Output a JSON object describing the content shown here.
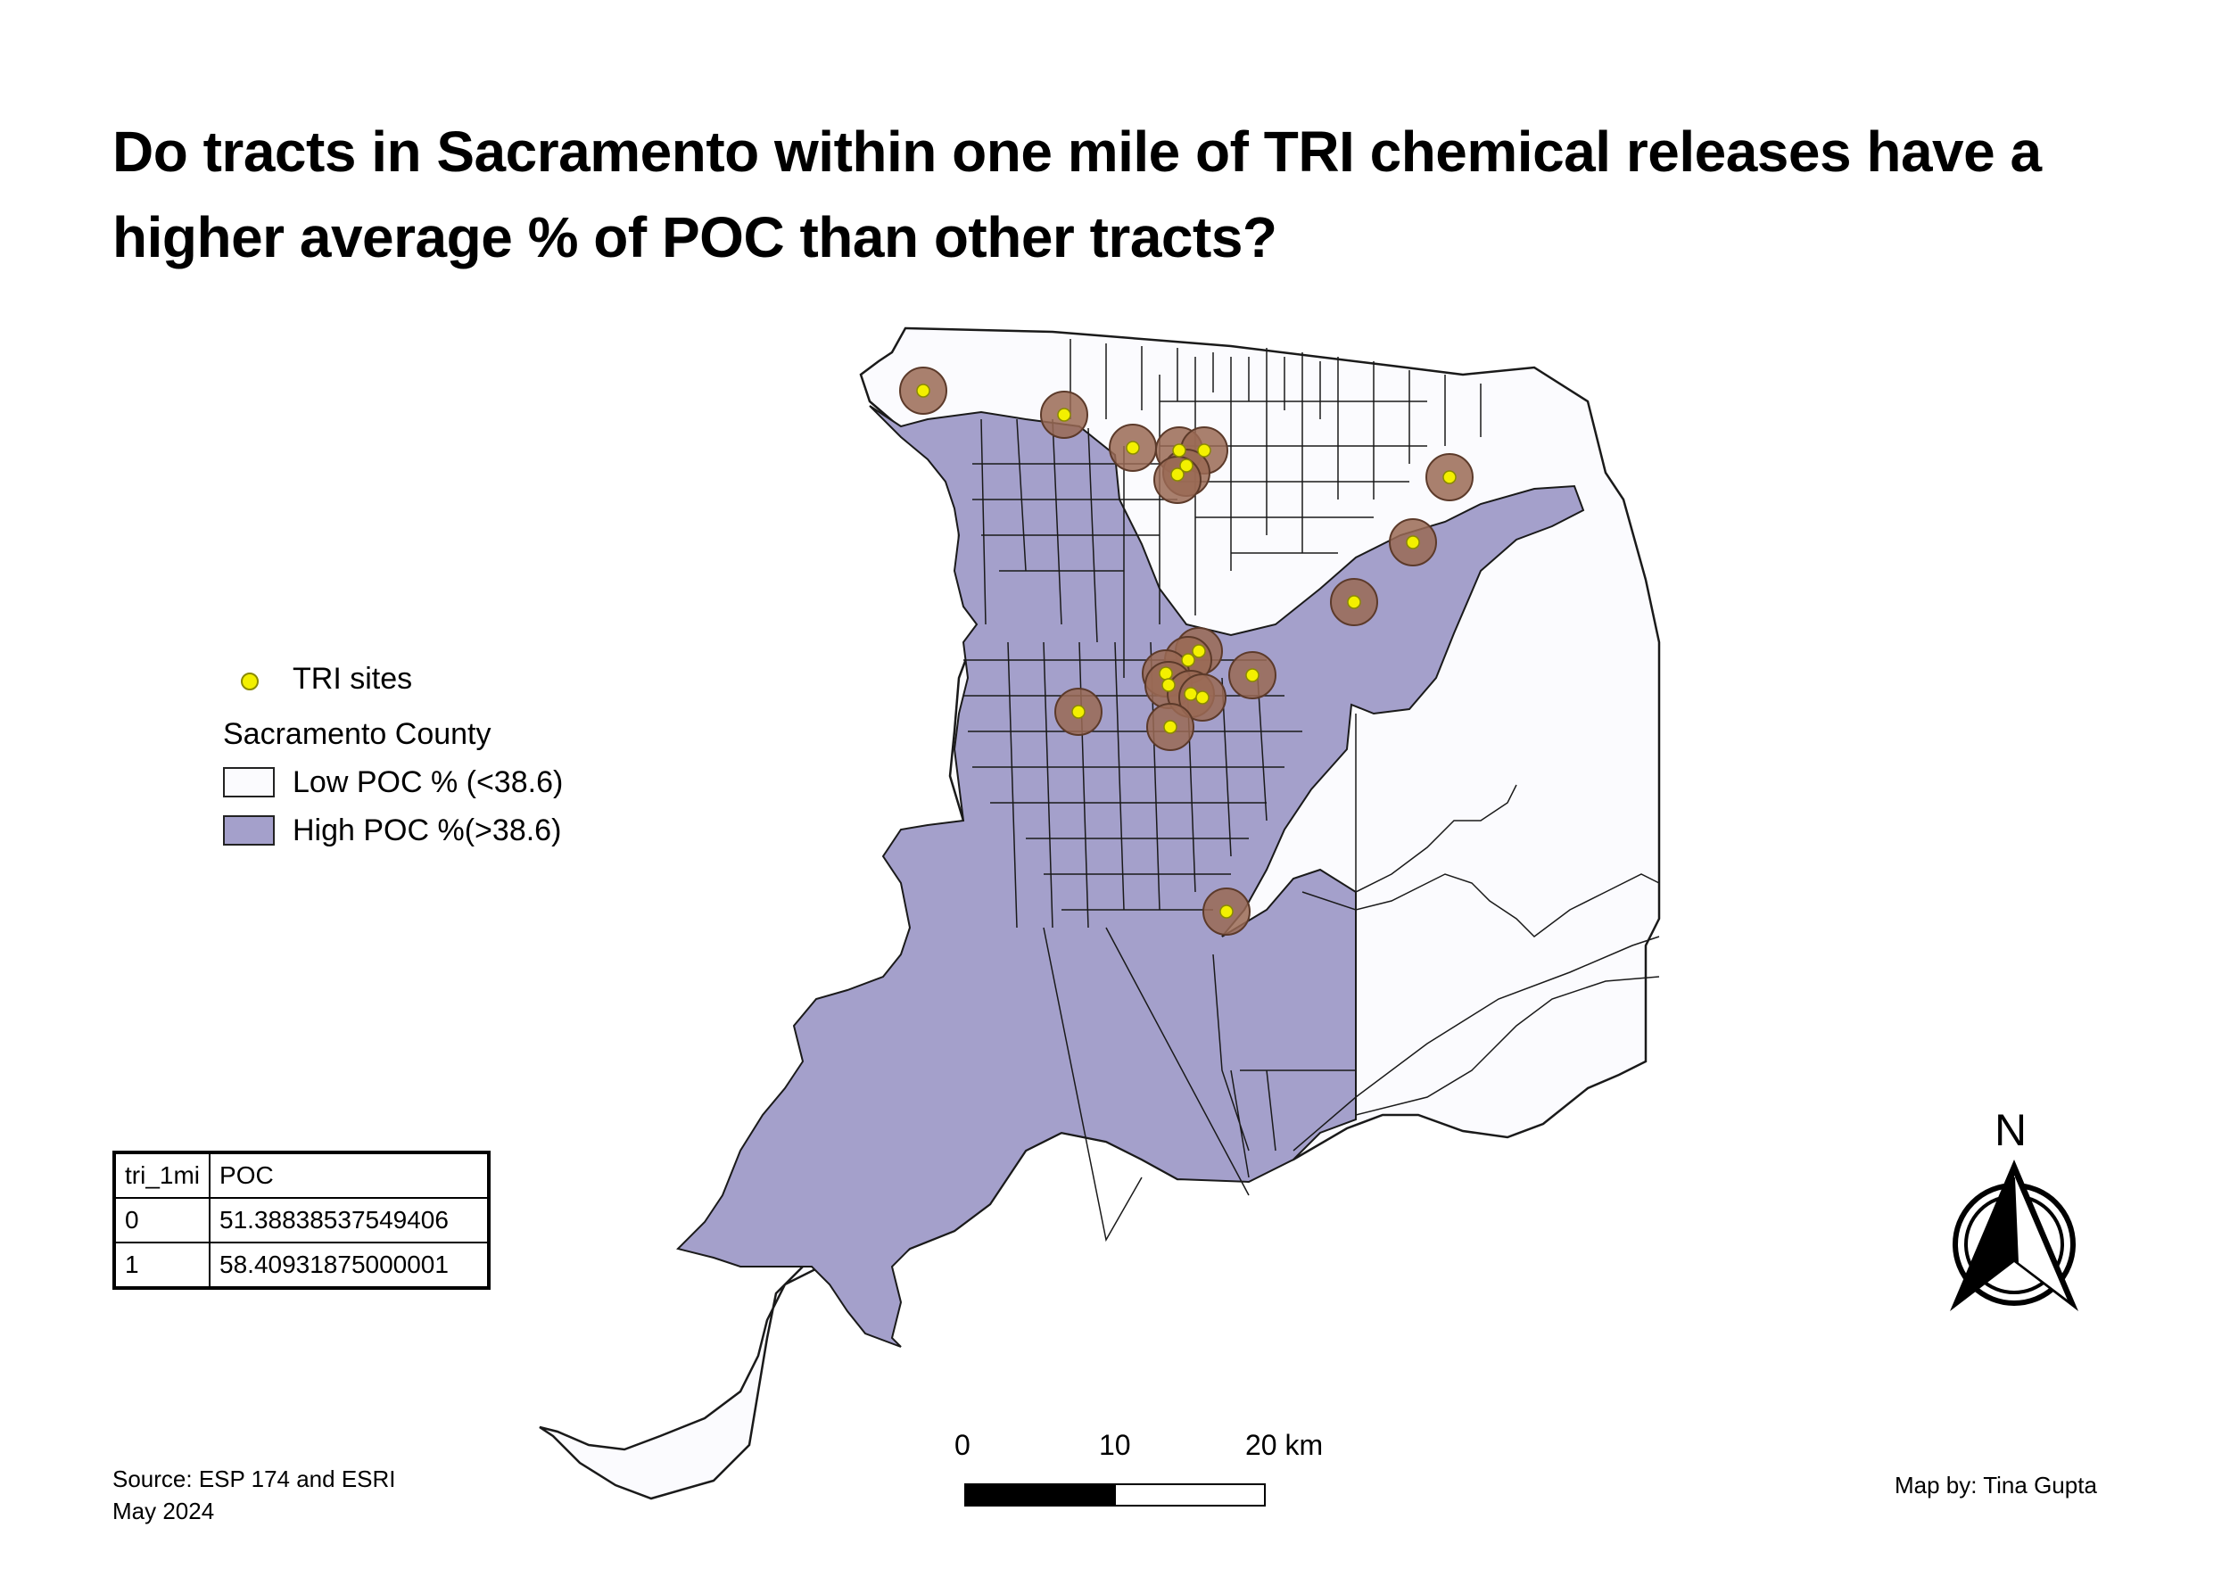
{
  "title": "Do tracts in Sacramento within one mile of TRI chemical releases have a higher average % of POC than other tracts?",
  "legend": {
    "sites_label": "TRI sites",
    "county_heading": "Sacramento County",
    "low_label": "Low POC % (<38.6)",
    "high_label": "High POC %(>38.6)"
  },
  "colors": {
    "high_poc": "#a4a0cb",
    "low_poc": "#fbfbfe",
    "buffer": "#9a6a55",
    "site": "#f3f000",
    "tract_line": "#1a1a1a"
  },
  "stats_table": {
    "headers": [
      "tri_1mi",
      "POC"
    ],
    "rows": [
      [
        "0",
        "51.38838537549406"
      ],
      [
        "1",
        "58.40931875000001"
      ]
    ]
  },
  "scale_bar": {
    "labels": [
      "0",
      "10",
      "20 km"
    ]
  },
  "north_arrow": {
    "label": "N"
  },
  "source": {
    "line1": "Source: ESP 174 and ESRI",
    "line2": "May 2024"
  },
  "credit": "Map by: Tina Gupta"
}
